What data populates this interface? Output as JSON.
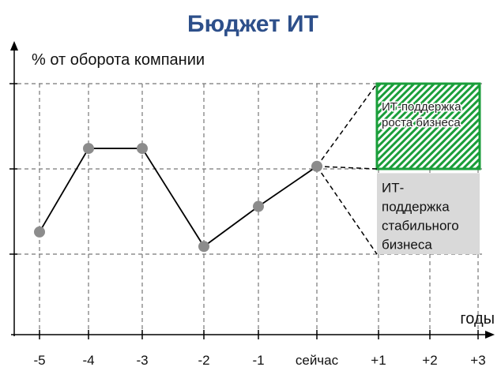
{
  "chart_data": {
    "type": "line",
    "title": "Бюджет ИТ",
    "y_label": "% от оборота компании",
    "x_label": "годы",
    "categories": [
      "-5",
      "-4",
      "-3",
      "-2",
      "-1",
      "сейчас",
      "+1",
      "+2",
      "+3"
    ],
    "series": [
      {
        "color": "#000000",
        "marker_color": "#8c8c8c",
        "values": [
          1.26,
          2.24,
          2.24,
          1.09,
          1.56,
          2.03,
          null,
          null,
          null
        ]
      }
    ],
    "ylim": [
      0,
      3.5
    ],
    "yticks": [
      1,
      2,
      3
    ],
    "grid": true,
    "annotations": [
      {
        "lines": [
          "ИТ-поддержка",
          "роста бизнеса"
        ],
        "style": "hatched",
        "color": "#1a9e3a",
        "top": 3,
        "bottom": 2
      },
      {
        "lines": [
          "ИТ-",
          "поддержка",
          "стабильного",
          "бизнеса"
        ],
        "style": "solid",
        "color": "#d9d9d9",
        "top": 1.95,
        "bottom": 1
      }
    ]
  }
}
